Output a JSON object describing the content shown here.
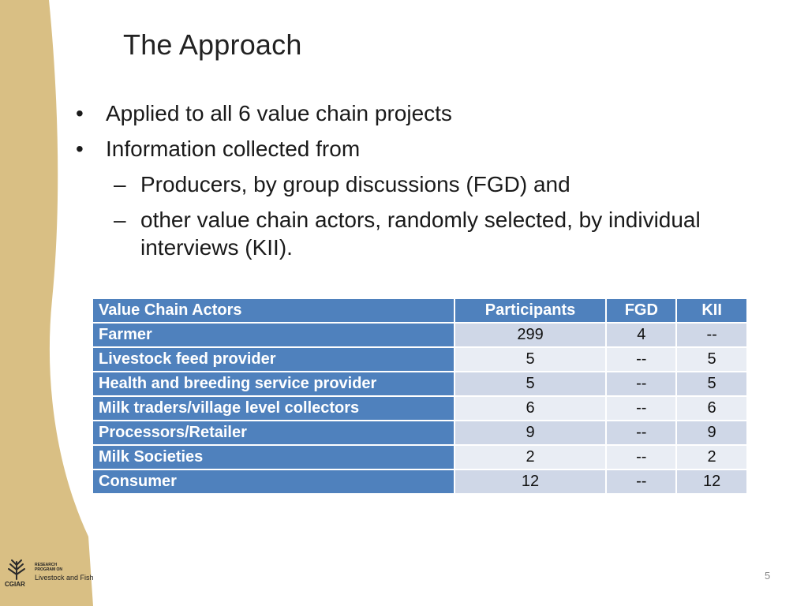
{
  "slide": {
    "title": "The Approach",
    "page_number": "5"
  },
  "bullets": [
    {
      "text": "Applied to all 6 value chain projects"
    },
    {
      "text": "Information collected from"
    }
  ],
  "sub_bullets": [
    {
      "text": "Producers, by group discussions (FGD) and"
    },
    {
      "text": "other value chain actors, randomly selected, by individual interviews (KII)."
    }
  ],
  "table": {
    "headers": [
      "Value Chain Actors",
      "Participants",
      "FGD",
      "KII"
    ],
    "rows": [
      [
        "Farmer",
        "299",
        "4",
        "--"
      ],
      [
        "Livestock feed provider",
        "5",
        "--",
        "5"
      ],
      [
        "Health and breeding service provider",
        "5",
        "--",
        "5"
      ],
      [
        "Milk traders/village level collectors",
        "6",
        "--",
        "6"
      ],
      [
        "Processors/Retailer",
        "9",
        "--",
        "9"
      ],
      [
        "Milk Societies",
        "2",
        "--",
        "2"
      ],
      [
        "Consumer",
        "12",
        "--",
        "12"
      ]
    ]
  },
  "logo": {
    "org": "CGIAR",
    "research_line": "RESEARCH PROGRAM ON",
    "program": "Livestock and Fish",
    "icon": "wheat-emblem-icon"
  },
  "colors": {
    "header_blue": "#4f81bd",
    "row_light": "#e9edf4",
    "row_mid": "#cfd7e7",
    "wave": "#d9bf84"
  }
}
